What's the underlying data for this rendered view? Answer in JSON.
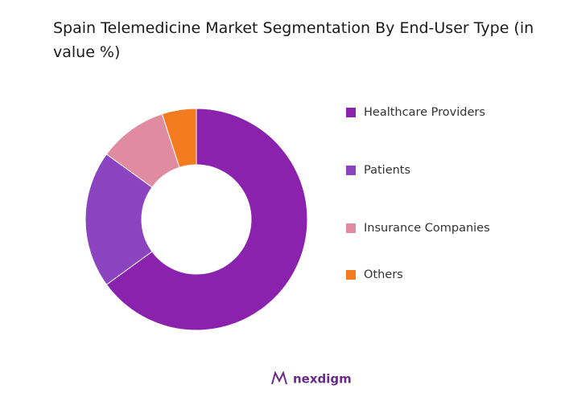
{
  "chart_data": {
    "type": "donut",
    "title": "Spain Telemedicine Market Segmentation By End-User Type (in value %)",
    "categories": [
      "Healthcare Providers",
      "Patients",
      "Insurance Companies",
      "Others"
    ],
    "values": [
      65,
      20,
      10,
      5
    ],
    "colors": [
      "#8b22ae",
      "#8b43c0",
      "#e08ba0",
      "#f47b20"
    ],
    "legend": "right"
  },
  "logo": "nexdigm"
}
